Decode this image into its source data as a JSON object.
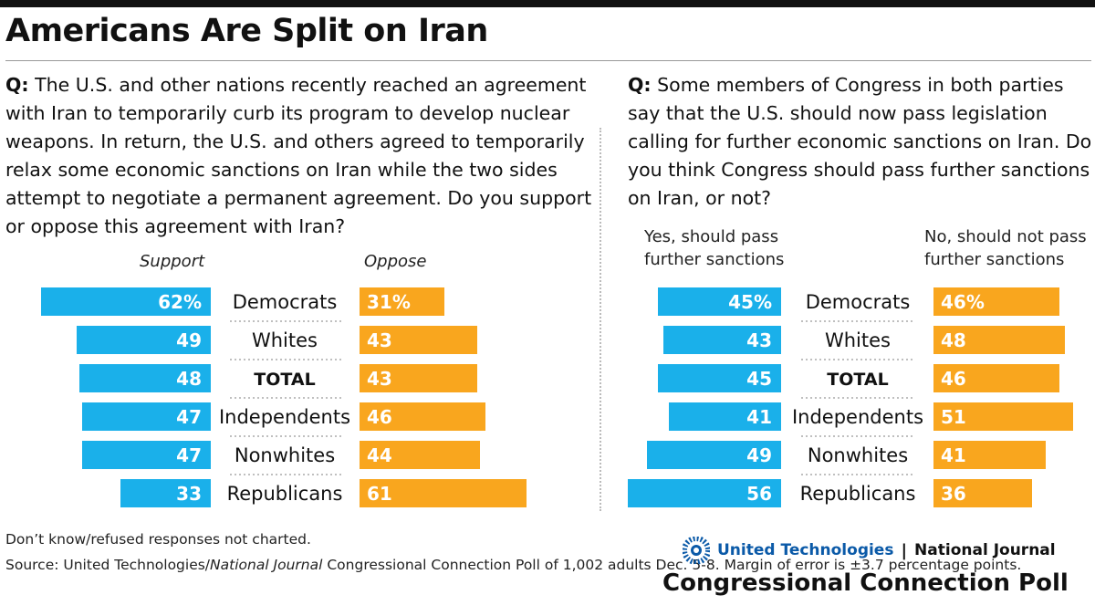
{
  "title": "Americans Are Split on Iran",
  "question_left": {
    "prefix": "Q:",
    "text": "The U.S. and other nations recently reached an agreement with Iran to temporarily curb its program to develop nuclear weapons. In return, the U.S. and others agreed to temporarily relax some economic sanctions on Iran while the two sides attempt to negotiate a permanent agreement. Do you support or oppose this agreement with Iran?"
  },
  "question_right": {
    "prefix": "Q:",
    "text": "Some members of Congress in both parties say that the U.S. should now pass legislation calling for further economic sanctions on Iran. Do you think Congress should pass further sanctions on Iran, or not?"
  },
  "colors": {
    "blue": "#1ab0ea",
    "orange": "#f9a61e",
    "title_rule": "#111111",
    "logo_blue": "#0b5aa8"
  },
  "chart_data": [
    {
      "type": "bar",
      "categories": [
        "Democrats",
        "Whites",
        "TOTAL",
        "Independents",
        "Nonwhites",
        "Republicans"
      ],
      "category_bold": [
        false,
        false,
        true,
        false,
        false,
        false
      ],
      "series": [
        {
          "name": "Support",
          "values": [
            62,
            49,
            48,
            47,
            47,
            33
          ],
          "labels": [
            "62%",
            "49",
            "48",
            "47",
            "47",
            "33"
          ],
          "color": "#1ab0ea"
        },
        {
          "name": "Oppose",
          "values": [
            31,
            43,
            43,
            46,
            44,
            61
          ],
          "labels": [
            "31%",
            "43",
            "43",
            "46",
            "44",
            "61"
          ],
          "color": "#f9a61e"
        }
      ]
    },
    {
      "type": "bar",
      "categories": [
        "Democrats",
        "Whites",
        "TOTAL",
        "Independents",
        "Nonwhites",
        "Republicans"
      ],
      "category_bold": [
        false,
        false,
        true,
        false,
        false,
        false
      ],
      "series": [
        {
          "name": "Yes, should pass further sanctions",
          "values": [
            45,
            43,
            45,
            41,
            49,
            56
          ],
          "labels": [
            "45%",
            "43",
            "45",
            "41",
            "49",
            "56"
          ],
          "color": "#1ab0ea"
        },
        {
          "name": "No, should not pass further sanctions",
          "values": [
            46,
            48,
            46,
            51,
            41,
            36
          ],
          "labels": [
            "46%",
            "48",
            "46",
            "51",
            "41",
            "36"
          ],
          "color": "#f9a61e"
        }
      ]
    }
  ],
  "headers": {
    "left_support": "Support",
    "left_oppose": "Oppose",
    "right_yes_line1": "Yes, should pass",
    "right_yes_line2": "further sanctions",
    "right_no_line1": "No, should not pass",
    "right_no_line2": "further sanctions"
  },
  "notes": {
    "dont_know": "Don’t know/refused responses not charted.",
    "source_prefix": "Source: United Technologies/",
    "source_italic": "National Journal",
    "source_suffix": " Congressional Connection Poll of 1,002 adults Dec. 5-8. Margin of error is ±3.7 percentage points."
  },
  "branding": {
    "ut": "United Technologies",
    "sep": "|",
    "nj": "National Journal",
    "poll": "Congressional Connection Poll",
    "logo_icon": "united-technologies-logo"
  }
}
